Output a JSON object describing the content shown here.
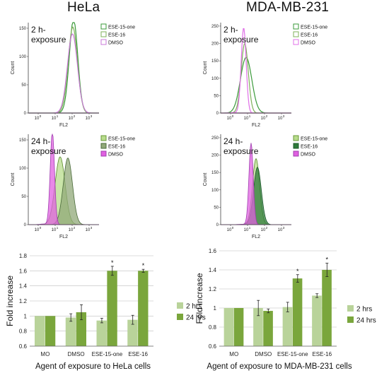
{
  "headings": {
    "left": "HeLa",
    "right": "MDA-MB-231"
  },
  "flow_common": {
    "ylabel": "Count",
    "xlabel": "FL2",
    "xticks": [
      "10",
      "10",
      "10",
      "10"
    ],
    "xtick_exponents": [
      "0",
      "1",
      "2",
      "3"
    ]
  },
  "chart_data": [
    {
      "type": "area",
      "name": "flow-hela-2h",
      "exposure": [
        "2 h-",
        "exposure"
      ],
      "ylim": [
        0,
        160
      ],
      "yticks": [
        0,
        50,
        100,
        150
      ],
      "series": [
        {
          "name": "ESE-15-one",
          "stroke": "#3a9a3a",
          "fill": "none",
          "center": 0.64,
          "peak": 165,
          "sigma": 0.06
        },
        {
          "name": "ESE-16",
          "stroke": "#7fb05a",
          "fill": "none",
          "center": 0.63,
          "peak": 152,
          "sigma": 0.065
        },
        {
          "name": "DMSO",
          "stroke": "#c878d8",
          "fill": "none",
          "center": 0.625,
          "peak": 140,
          "sigma": 0.07
        }
      ],
      "legend_swatches": [
        "#ffffff",
        "#ffffff",
        "#ffffff"
      ],
      "legend_borders": [
        "#3a9a3a",
        "#7fb05a",
        "#c878d8"
      ]
    },
    {
      "type": "area",
      "name": "flow-mda-2h",
      "exposure": [
        "2 h-",
        "exposure"
      ],
      "ylim": [
        0,
        260
      ],
      "yticks": [
        0,
        50,
        100,
        150,
        200,
        250
      ],
      "series": [
        {
          "name": "ESE-15-one",
          "stroke": "#3a9a3a",
          "fill": "none",
          "center": 0.36,
          "peak": 160,
          "sigma": 0.08
        },
        {
          "name": "ESE-16",
          "stroke": "#7fb05a",
          "fill": "none",
          "center": 0.34,
          "peak": 200,
          "sigma": 0.05
        },
        {
          "name": "DMSO",
          "stroke": "#e070e8",
          "fill": "none",
          "center": 0.325,
          "peak": 245,
          "sigma": 0.035
        }
      ],
      "legend_swatches": [
        "#ffffff",
        "#ffffff",
        "#ffffff"
      ],
      "legend_borders": [
        "#3a9a3a",
        "#7fb05a",
        "#e070e8"
      ]
    },
    {
      "type": "area",
      "name": "flow-hela-24h",
      "exposure": [
        "24 h-",
        "exposure"
      ],
      "ylim": [
        0,
        160
      ],
      "yticks": [
        0,
        50,
        100,
        150
      ],
      "series": [
        {
          "name": "ESE-15-one",
          "stroke": "#5a8a2a",
          "fill": "#b8dc8c",
          "center": 0.45,
          "peak": 120,
          "sigma": 0.07
        },
        {
          "name": "ESE-16",
          "stroke": "#4a6a3a",
          "fill": "#90a878",
          "center": 0.56,
          "peak": 118,
          "sigma": 0.065
        },
        {
          "name": "DMSO",
          "stroke": "#a040b0",
          "fill": "#e060e0",
          "center": 0.34,
          "peak": 165,
          "sigma": 0.03
        }
      ],
      "legend_swatches": [
        "#b8dc8c",
        "#90a878",
        "#e060e0"
      ],
      "legend_borders": [
        "#6a9a3a",
        "#4a6a3a",
        "#a040b0"
      ]
    },
    {
      "type": "area",
      "name": "flow-mda-24h",
      "exposure": [
        "24 h-",
        "exposure"
      ],
      "ylim": [
        0,
        260
      ],
      "yticks": [
        0,
        50,
        100,
        150,
        200,
        250
      ],
      "series": [
        {
          "name": "ESE-15-one",
          "stroke": "#5a8a2a",
          "fill": "#b8dc8c",
          "center": 0.5,
          "peak": 190,
          "sigma": 0.05
        },
        {
          "name": "ESE-16",
          "stroke": "#1d5a2a",
          "fill": "#2e7a3a",
          "center": 0.52,
          "peak": 165,
          "sigma": 0.055
        },
        {
          "name": "DMSO",
          "stroke": "#a040b0",
          "fill": "#e060e0",
          "center": 0.43,
          "peak": 235,
          "sigma": 0.03
        }
      ],
      "legend_swatches": [
        "#b8dc8c",
        "#2e7a3a",
        "#e060e0"
      ],
      "legend_borders": [
        "#6a9a3a",
        "#1d5a2a",
        "#a040b0"
      ]
    },
    {
      "type": "bar",
      "name": "bar-hela",
      "categories": [
        "MO",
        "DMSO",
        "ESE-15-one",
        "ESE-16"
      ],
      "series": [
        {
          "name": "2 hrs",
          "color": "#b9d39a",
          "values": [
            1.0,
            0.98,
            0.94,
            0.95
          ],
          "errors": [
            0.0,
            0.05,
            0.03,
            0.06
          ]
        },
        {
          "name": "24 hrs",
          "color": "#7aa63c",
          "values": [
            1.0,
            1.05,
            1.6,
            1.6
          ],
          "errors": [
            0.0,
            0.1,
            0.06,
            0.02
          ]
        }
      ],
      "significance": [
        "",
        "",
        "*",
        "*"
      ],
      "ylabel": "Fold increase",
      "xlabel": "Agent of exposure to HeLa cells",
      "ylim": [
        0.6,
        1.8
      ],
      "yticks": [
        "0.6",
        "0.8",
        "1",
        "1.2",
        "1.4",
        "1.6",
        "1.8"
      ],
      "grid": true
    },
    {
      "type": "bar",
      "name": "bar-mda",
      "categories": [
        "MO",
        "DMSO",
        "ESE-15-one",
        "ESE-16"
      ],
      "series": [
        {
          "name": "2 hrs",
          "color": "#b9d39a",
          "values": [
            1.0,
            1.0,
            1.01,
            1.13
          ],
          "errors": [
            0.0,
            0.08,
            0.05,
            0.02
          ]
        },
        {
          "name": "24 hrs",
          "color": "#7aa63c",
          "values": [
            1.0,
            0.97,
            1.31,
            1.4
          ],
          "errors": [
            0.0,
            0.02,
            0.04,
            0.07
          ]
        }
      ],
      "significance": [
        "",
        "",
        "*",
        "*"
      ],
      "ylabel": "Fold increase",
      "xlabel": "Agent of exposure to MDA-MB-231 cells",
      "ylim": [
        0.6,
        1.6
      ],
      "yticks": [
        "0.6",
        "0.8",
        "1",
        "1.2",
        "1.4",
        "1.6"
      ],
      "grid": true
    }
  ]
}
